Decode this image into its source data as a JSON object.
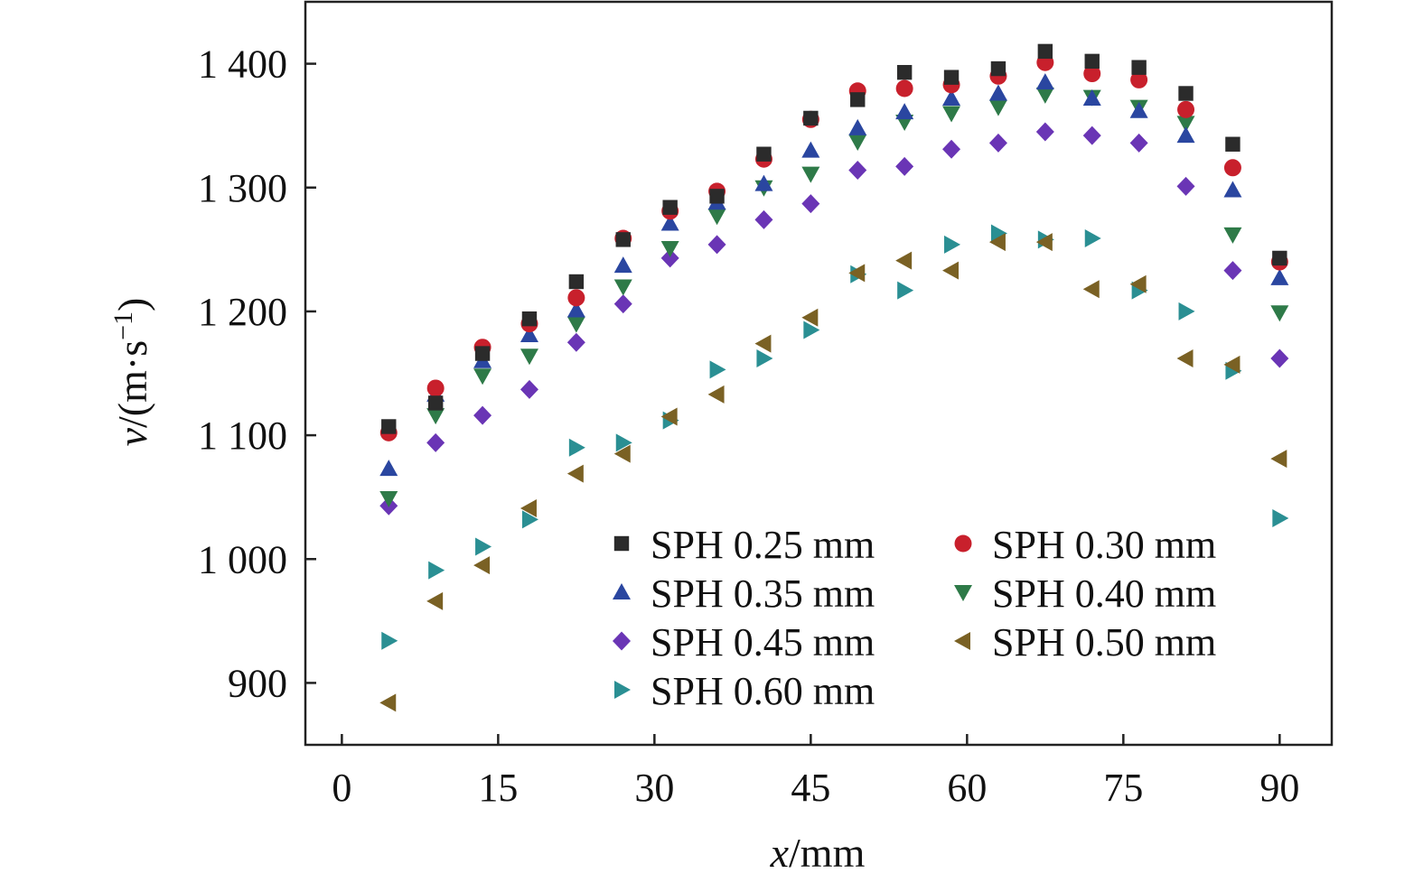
{
  "chart_data": {
    "type": "scatter",
    "title": "",
    "xlabel": {
      "var": "x",
      "rest": "/mm"
    },
    "ylabel": {
      "var": "v",
      "open": "/(m·s",
      "sup": "−1",
      "close": ")"
    },
    "xlim": [
      -3.5,
      95
    ],
    "ylim": [
      850,
      1450
    ],
    "xticks": [
      0,
      15,
      30,
      45,
      60,
      75,
      90
    ],
    "xtick_labels": [
      "0",
      "15",
      "30",
      "45",
      "60",
      "75",
      "90"
    ],
    "yticks": [
      900,
      1000,
      1100,
      1200,
      1300,
      1400
    ],
    "ytick_labels": [
      "900",
      "1 000",
      "1 100",
      "1 200",
      "1 300",
      "1 400"
    ],
    "grid": false,
    "legend_position": "bottom-right",
    "x": [
      4.5,
      9,
      13.5,
      18,
      22.5,
      27,
      31.5,
      36,
      40.5,
      45,
      49.5,
      54,
      58.5,
      63,
      67.5,
      72,
      76.5,
      81,
      85.5,
      90
    ],
    "series": [
      {
        "name": "SPH 0.25 mm",
        "marker": "square",
        "color": "#2b2b2b",
        "values": [
          1107,
          1126,
          1166,
          1194,
          1224,
          1258,
          1284,
          1293,
          1327,
          1356,
          1371,
          1393,
          1389,
          1396,
          1410,
          1402,
          1397,
          1376,
          1335,
          1243
        ]
      },
      {
        "name": "SPH 0.30 mm",
        "marker": "circle",
        "color": "#c8202c",
        "values": [
          1102,
          1138,
          1171,
          1190,
          1211,
          1259,
          1281,
          1297,
          1323,
          1355,
          1378,
          1380,
          1383,
          1390,
          1401,
          1392,
          1387,
          1363,
          1316,
          1240
        ]
      },
      {
        "name": "SPH 0.35 mm",
        "marker": "triangle-up",
        "color": "#2a46a0",
        "values": [
          1073,
          1133,
          1160,
          1181,
          1201,
          1237,
          1271,
          1288,
          1303,
          1330,
          1348,
          1361,
          1372,
          1376,
          1385,
          1372,
          1362,
          1342,
          1298,
          1227
        ]
      },
      {
        "name": "SPH 0.40 mm",
        "marker": "triangle-down",
        "color": "#2e7a48",
        "values": [
          1049,
          1116,
          1148,
          1164,
          1190,
          1220,
          1251,
          1277,
          1300,
          1311,
          1337,
          1353,
          1360,
          1365,
          1375,
          1373,
          1365,
          1352,
          1262,
          1199
        ]
      },
      {
        "name": "SPH 0.45 mm",
        "marker": "diamond",
        "color": "#6a35b5",
        "values": [
          1043,
          1094,
          1116,
          1137,
          1175,
          1206,
          1243,
          1254,
          1274,
          1287,
          1314,
          1317,
          1331,
          1336,
          1345,
          1342,
          1336,
          1301,
          1233,
          1162
        ]
      },
      {
        "name": "SPH 0.50 mm",
        "marker": "triangle-left",
        "color": "#7a6124",
        "values": [
          884,
          966,
          995,
          1041,
          1069,
          1085,
          1115,
          1133,
          1174,
          1195,
          1231,
          1241,
          1233,
          1256,
          1256,
          1218,
          1222,
          1162,
          1157,
          1081
        ]
      },
      {
        "name": "SPH 0.60 mm",
        "marker": "triangle-right",
        "color": "#2a8f93",
        "values": [
          934,
          991,
          1010,
          1032,
          1090,
          1094,
          1112,
          1153,
          1162,
          1185,
          1230,
          1217,
          1254,
          1263,
          1258,
          1259,
          1217,
          1200,
          1152,
          1033
        ]
      }
    ]
  }
}
